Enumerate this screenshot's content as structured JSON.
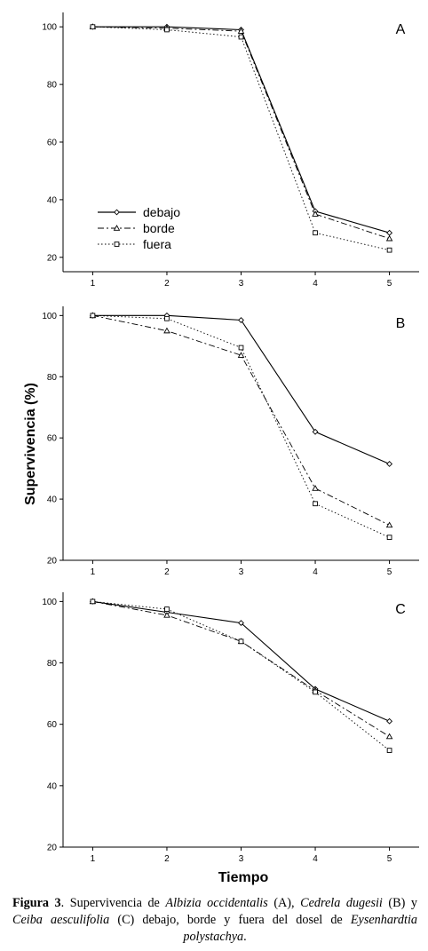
{
  "chart_data": [
    {
      "type": "line",
      "panel_label": "A",
      "x": [
        1,
        2,
        3,
        4,
        5
      ],
      "xlim": [
        0.6,
        5.4
      ],
      "ylim": [
        15,
        105
      ],
      "yticks": [
        20,
        40,
        60,
        80,
        100
      ],
      "legend": "left",
      "series": [
        {
          "name": "debajo",
          "marker": "diamond",
          "dash": "solid",
          "values": [
            100,
            100,
            99,
            36,
            28.5
          ]
        },
        {
          "name": "borde",
          "marker": "triangle",
          "dash": "dashdot",
          "values": [
            100,
            99.5,
            98.5,
            35,
            26.5
          ]
        },
        {
          "name": "fuera",
          "marker": "square",
          "dash": "dotted",
          "values": [
            100,
            99,
            96.5,
            28.5,
            22.5
          ]
        }
      ]
    },
    {
      "type": "line",
      "panel_label": "B",
      "x": [
        1,
        2,
        3,
        4,
        5
      ],
      "xlim": [
        0.6,
        5.4
      ],
      "ylim": [
        20,
        103
      ],
      "yticks": [
        20,
        40,
        60,
        80,
        100
      ],
      "series": [
        {
          "name": "debajo",
          "marker": "diamond",
          "dash": "solid",
          "values": [
            100,
            100,
            98.5,
            62,
            51.5
          ]
        },
        {
          "name": "borde",
          "marker": "triangle",
          "dash": "dashdot",
          "values": [
            100,
            95,
            87,
            43.5,
            31.5
          ]
        },
        {
          "name": "fuera",
          "marker": "square",
          "dash": "dotted",
          "values": [
            100,
            99,
            89.5,
            38.5,
            27.5
          ]
        }
      ]
    },
    {
      "type": "line",
      "panel_label": "C",
      "x": [
        1,
        2,
        3,
        4,
        5
      ],
      "xlim": [
        0.6,
        5.4
      ],
      "ylim": [
        20,
        103
      ],
      "yticks": [
        20,
        40,
        60,
        80,
        100
      ],
      "series": [
        {
          "name": "debajo",
          "marker": "diamond",
          "dash": "solid",
          "values": [
            100,
            96.5,
            93,
            71.5,
            61
          ]
        },
        {
          "name": "borde",
          "marker": "triangle",
          "dash": "dashdot",
          "values": [
            100,
            95.5,
            87,
            71,
            56
          ]
        },
        {
          "name": "fuera",
          "marker": "square",
          "dash": "dotted",
          "values": [
            100,
            97.5,
            87,
            70.5,
            51.5
          ]
        }
      ]
    }
  ],
  "ylabel": "Supervivencia (%)",
  "xlabel": "Tiempo",
  "caption": {
    "fig_label": "Figura 3",
    "t1": ". Supervivencia de ",
    "sp1": "Albizia occidentalis",
    "t2": " (A), ",
    "sp2": "Cedrela dugesii",
    "t3": " (B) y ",
    "sp3": "Ceiba aesculifolia",
    "t4": " (C) debajo, borde y fuera del dosel de ",
    "sp4": "Eysenhardtia polystachya",
    "t5": "."
  }
}
